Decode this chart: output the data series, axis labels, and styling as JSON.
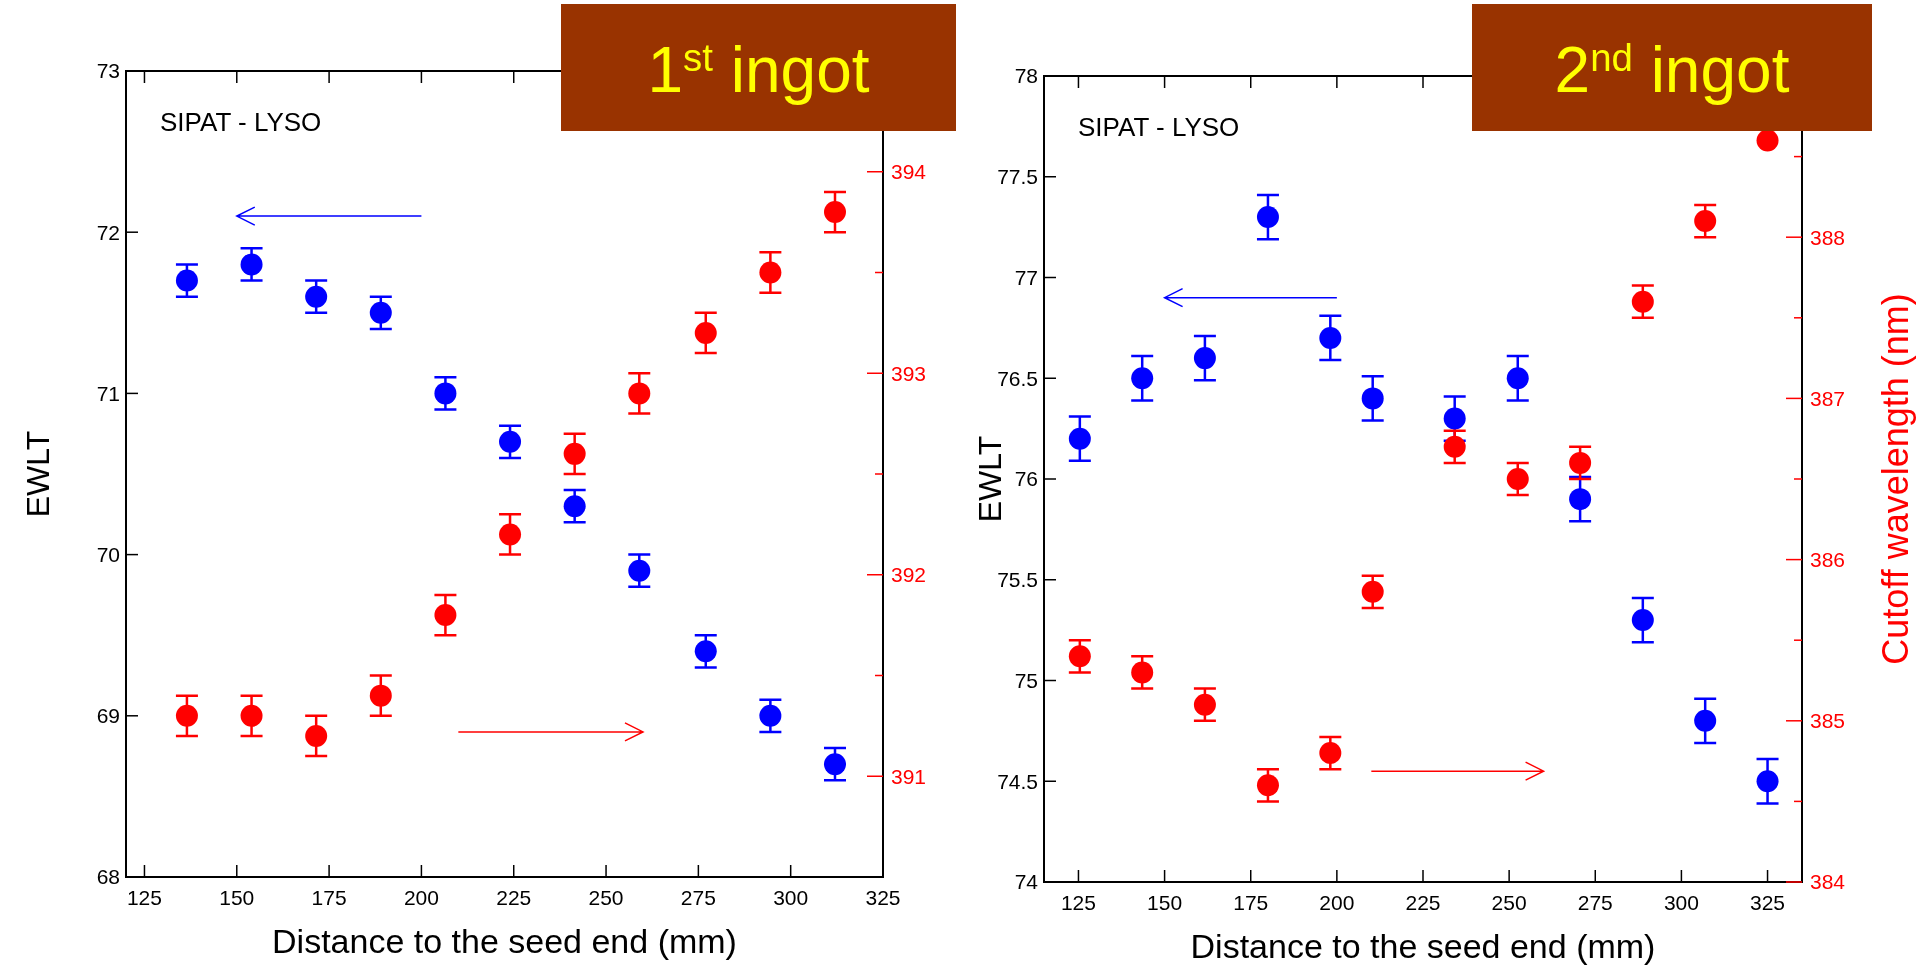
{
  "chart_data": [
    {
      "type": "scatter",
      "title": "1$^{st}$ ingot",
      "xlabel": "Distance to the seed end (mm)",
      "ylabel": "EWLT",
      "annotations": [
        "SIPAT - LYSO"
      ],
      "marker": "circle",
      "xlim": [
        120,
        325
      ],
      "xticks": [
        125,
        150,
        175,
        200,
        225,
        250,
        275,
        300,
        325
      ],
      "ylim": [
        68,
        73
      ],
      "yticks": [
        68,
        69,
        70,
        71,
        72,
        73
      ],
      "y2lim": [
        390.5,
        394.5
      ],
      "y2ticks": [
        391,
        {
          "value": 391.5,
          "label": null
        },
        392,
        {
          "value": 392.5,
          "label": null
        },
        393,
        {
          "value": 393.5,
          "label": null
        },
        394
      ],
      "series": [
        {
          "color": "#0000ff",
          "x": [
            136.5,
            154,
            171.5,
            189,
            206.5,
            224,
            241.5,
            259,
            277,
            294.5,
            312
          ],
          "values": [
            71.7,
            71.8,
            71.6,
            71.5,
            71.0,
            70.7,
            70.3,
            69.9,
            69.4,
            69.0,
            68.7
          ],
          "errors": [
            0.1,
            0.1,
            0.1,
            0.1,
            0.1,
            0.1,
            0.1,
            0.1,
            0.1,
            0.1,
            0.1
          ]
        },
        {
          "color": "#ff0000",
          "axis": "y2",
          "x": [
            136.5,
            154,
            171.5,
            189,
            206.5,
            224,
            241.5,
            259,
            277,
            294.5,
            312
          ],
          "values": [
            391.3,
            391.3,
            391.2,
            391.4,
            391.8,
            392.2,
            392.6,
            392.9,
            393.2,
            393.5,
            393.8
          ],
          "errors": [
            0.1,
            0.1,
            0.1,
            0.1,
            0.1,
            0.1,
            0.1,
            0.1,
            0.1,
            0.1,
            0.1
          ]
        }
      ]
    },
    {
      "type": "scatter",
      "title": "2$^{nd}$ ingot",
      "xlabel": "Distance to the seed end (mm)",
      "ylabel": "EWLT",
      "y2label": "Cutoff wavelength (nm)",
      "annotations": [
        "SIPAT - LYSO"
      ],
      "marker": "circle",
      "xlim": [
        115,
        335
      ],
      "xticks": [
        125,
        150,
        175,
        200,
        225,
        250,
        275,
        300,
        325
      ],
      "ylim": [
        74,
        78
      ],
      "yticks": [
        74,
        74.5,
        75,
        75.5,
        76,
        76.5,
        77,
        77.5,
        78
      ],
      "y2lim": [
        384,
        389
      ],
      "y2ticks": [
        384,
        {
          "value": 384.5,
          "label": null
        },
        385,
        {
          "value": 385.5,
          "label": null
        },
        386,
        {
          "value": 386.5,
          "label": null
        },
        387,
        {
          "value": 387.5,
          "label": null
        },
        388,
        {
          "value": 388.5,
          "label": null
        }
      ],
      "series": [
        {
          "color": "#0000ff",
          "x": [
            125.4,
            143.5,
            161.7,
            180,
            198.1,
            210.4,
            234.2,
            252.5,
            270.6,
            288.8,
            306.9,
            325
          ],
          "values": [
            76.2,
            76.5,
            76.6,
            77.3,
            76.7,
            76.4,
            76.3,
            76.5,
            75.9,
            75.3,
            74.8,
            74.5
          ],
          "errors": [
            0.11,
            0.11,
            0.11,
            0.11,
            0.11,
            0.11,
            0.11,
            0.11,
            0.11,
            0.11,
            0.11,
            0.11
          ]
        },
        {
          "color": "#ff0000",
          "axis": "y2",
          "x": [
            125.4,
            143.5,
            161.7,
            180,
            198.1,
            210.4,
            234.2,
            252.5,
            270.6,
            288.8,
            306.9,
            325
          ],
          "values": [
            385.4,
            385.3,
            385.1,
            384.6,
            384.8,
            385.8,
            386.7,
            386.5,
            386.6,
            387.6,
            388.1,
            388.6
          ],
          "errors": [
            0.1,
            0.1,
            0.1,
            0.1,
            0.1,
            0.1,
            0.1,
            0.1,
            0.1,
            0.1,
            0.1,
            null
          ]
        }
      ]
    }
  ]
}
